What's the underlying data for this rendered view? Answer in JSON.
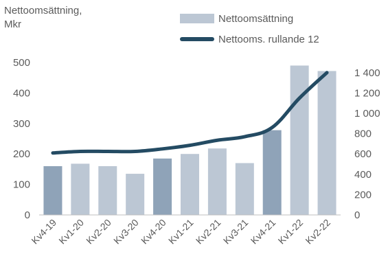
{
  "chart_data": {
    "type": "bar",
    "ytitle_lines": [
      "Nettoomsättning,",
      "Mkr"
    ],
    "categories": [
      "Kv4-19",
      "Kv1-20",
      "Kv2-20",
      "Kv3-20",
      "Kv4-20",
      "Kv1-21",
      "Kv2-21",
      "Kv3-21",
      "Kv4-21",
      "Kv1-22",
      "Kv2-22"
    ],
    "series": [
      {
        "name": "Nettoomsättning",
        "kind": "bar",
        "axis": "left",
        "values": [
          160,
          168,
          160,
          135,
          185,
          200,
          218,
          170,
          278,
          490,
          472
        ]
      },
      {
        "name": "Nettooms. rullande 12",
        "kind": "line",
        "axis": "right",
        "values": [
          610,
          625,
          625,
          625,
          650,
          685,
          735,
          770,
          860,
          1150,
          1400
        ]
      }
    ],
    "highlighted_categories": [
      "Kv4-19",
      "Kv4-20",
      "Kv4-21"
    ],
    "y_left": {
      "min": 0,
      "max": 500,
      "ticks": [
        "0",
        "100",
        "200",
        "300",
        "400",
        "500"
      ]
    },
    "y_right": {
      "min": 0,
      "max": 1500,
      "ticks": [
        "0",
        "200",
        "400",
        "600",
        "800",
        "1 000",
        "1 200",
        "1 400"
      ]
    },
    "colors": {
      "bar": "#bcc7d4",
      "bar_highlight": "#8fa3b8",
      "line": "#244b63",
      "text": "#5a5a5a"
    },
    "grid": false,
    "legend_position": "top-right"
  }
}
